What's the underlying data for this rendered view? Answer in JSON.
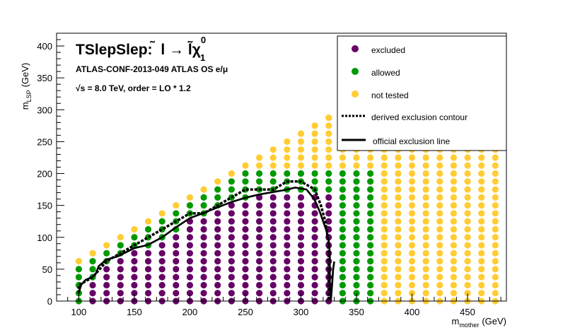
{
  "chart_data": {
    "type": "scatter",
    "title_main": "TSlepSlep:",
    "title_decay": "̃l → l̃χ",
    "title_sup": "0",
    "title_sub": "1",
    "conf_line": "ATLAS-CONF-2013-049  ATLAS OS e/μ",
    "energy_line": "√s =  8.0 TeV, order =  LO * 1.2",
    "xlabel_main": "m",
    "xlabel_sub": "mother",
    "xlabel_unit": "(GeV)",
    "ylabel_main": "m",
    "ylabel_sub": "LSP",
    "ylabel_unit": "(GeV)",
    "xlim": [
      80,
      485
    ],
    "ylim": [
      0,
      420
    ],
    "xticks": [
      100,
      150,
      200,
      250,
      300,
      350,
      400,
      450
    ],
    "yticks": [
      0,
      50,
      100,
      150,
      200,
      250,
      300,
      350,
      400
    ],
    "grid": "off",
    "legend_position": "top-right",
    "legend": {
      "excluded": "excluded",
      "allowed": "allowed",
      "not_tested": "not tested",
      "derived": "derived exclusion contour",
      "official": "official exclusion line"
    },
    "colors": {
      "excluded": "#660066",
      "allowed": "#009900",
      "not_tested": "#ffcc33",
      "line": "#000000"
    },
    "grid_points": {
      "x_start": 100,
      "x_end": 475,
      "x_step": 12.5,
      "y_start": 0,
      "y_step": 12.5,
      "diagonal_offset": 37.5,
      "diagonal_max_x": 337.5,
      "y_cap_above_max": 325
    },
    "regions": {
      "excluded_x_range": [
        112.5,
        325
      ],
      "allowed_x_max": 362.5
    },
    "derived_contour": [
      [
        100,
        12.5
      ],
      [
        100,
        25
      ],
      [
        112.5,
        37.5
      ],
      [
        125,
        62.5
      ],
      [
        137.5,
        75
      ],
      [
        150,
        87.5
      ],
      [
        162.5,
        100
      ],
      [
        175,
        112.5
      ],
      [
        187.5,
        125
      ],
      [
        200,
        137.5
      ],
      [
        212.5,
        137.5
      ],
      [
        225,
        150
      ],
      [
        237.5,
        162.5
      ],
      [
        250,
        175
      ],
      [
        262.5,
        175
      ],
      [
        275,
        175
      ],
      [
        287.5,
        187.5
      ],
      [
        300,
        187.5
      ],
      [
        312.5,
        175
      ],
      [
        318,
        150
      ],
      [
        322,
        125
      ],
      [
        324,
        100
      ],
      [
        325,
        75
      ],
      [
        325,
        50
      ],
      [
        325,
        25
      ],
      [
        325,
        0
      ]
    ],
    "official_line": [
      [
        100,
        12.5
      ],
      [
        102,
        25
      ],
      [
        106,
        33
      ],
      [
        111,
        37
      ],
      [
        115,
        42
      ],
      [
        118,
        55
      ],
      [
        125,
        65
      ],
      [
        135,
        70
      ],
      [
        150,
        83
      ],
      [
        162,
        88
      ],
      [
        175,
        100
      ],
      [
        187,
        115
      ],
      [
        200,
        130
      ],
      [
        212,
        138
      ],
      [
        225,
        147
      ],
      [
        237,
        155
      ],
      [
        250,
        162
      ],
      [
        262,
        167
      ],
      [
        275,
        171
      ],
      [
        285,
        174
      ],
      [
        295,
        178
      ],
      [
        305,
        175
      ],
      [
        312,
        160
      ],
      [
        317,
        140
      ],
      [
        320,
        125
      ],
      [
        323,
        110
      ],
      [
        325,
        95
      ],
      [
        326,
        75
      ],
      [
        326,
        50
      ],
      [
        326,
        25
      ],
      [
        327,
        2
      ],
      [
        328,
        25
      ],
      [
        329,
        50
      ],
      [
        330,
        62
      ]
    ]
  }
}
